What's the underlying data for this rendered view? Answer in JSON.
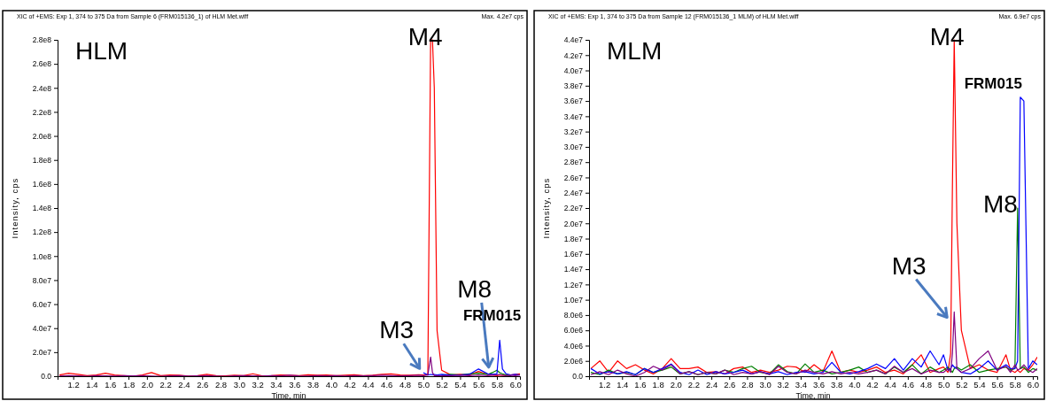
{
  "chart_data": [
    {
      "type": "line",
      "title": "HLM",
      "subtitle": "XIC of +EMS: Exp 1, 374 to 375 Da from Sample 6 (FRM015136_1) of HLM Met.wiff",
      "xlabel": "Time, min",
      "ylabel": "Intensity, cps",
      "x": [
        1.05,
        1.15,
        1.25,
        1.35,
        1.45,
        1.55,
        1.65,
        1.75,
        1.85,
        1.95,
        2.05,
        2.15,
        2.25,
        2.35,
        2.45,
        2.55,
        2.65,
        2.75,
        2.85,
        2.95,
        3.05,
        3.15,
        3.25,
        3.35,
        3.45,
        3.55,
        3.65,
        3.75,
        3.85,
        3.95,
        4.05,
        4.15,
        4.25,
        4.35,
        4.45,
        4.55,
        4.65,
        4.75,
        4.85,
        4.95,
        5.0,
        5.05,
        5.08,
        5.1,
        5.12,
        5.15,
        5.2,
        5.3,
        5.4,
        5.5,
        5.6,
        5.7,
        5.75,
        5.8,
        5.83,
        5.86,
        5.9,
        5.95,
        6.0,
        6.05
      ],
      "xlim": [
        1.03,
        6.05
      ],
      "xticks": [
        1.2,
        1.4,
        1.6,
        1.8,
        {
          "value": 2,
          "label": "2.0"
        },
        2.2,
        2.4,
        2.6,
        2.8,
        {
          "value": 3,
          "label": "3.0"
        },
        3.2,
        3.4,
        3.6,
        3.8,
        {
          "value": 4,
          "label": "4.0"
        },
        4.2,
        4.4,
        4.6,
        4.8,
        {
          "value": 5,
          "label": "5.0"
        },
        5.2,
        5.4,
        5.6,
        5.8,
        {
          "value": 6,
          "label": "6.0"
        }
      ],
      "ylim": [
        0,
        280000000.0
      ],
      "yticks": [
        {
          "value": 0,
          "label": "0.0"
        },
        {
          "value": 20000000.0,
          "label": "2.0e7"
        },
        {
          "value": 40000000.0,
          "label": "4.0e7"
        },
        {
          "value": 60000000.0,
          "label": "6.0e7"
        },
        {
          "value": 80000000.0,
          "label": "8.0e7"
        },
        {
          "value": 100000000.0,
          "label": "1.0e8"
        },
        {
          "value": 120000000.0,
          "label": "1.2e8"
        },
        {
          "value": 140000000.0,
          "label": "1.4e8"
        },
        {
          "value": 160000000.0,
          "label": "1.6e8"
        },
        {
          "value": 180000000.0,
          "label": "1.8e8"
        },
        {
          "value": 200000000.0,
          "label": "2.0e8"
        },
        {
          "value": 220000000.0,
          "label": "2.2e8"
        },
        {
          "value": 240000000.0,
          "label": "2.4e8"
        },
        {
          "value": 260000000.0,
          "label": "2.6e8"
        },
        {
          "value": 280000000.0,
          "label": "2.8e8"
        }
      ],
      "series": [
        {
          "color": "#ff0000",
          "values": [
            1000000.0,
            2500000.0,
            1500000.0,
            500000.0,
            1000000.0,
            2500000.0,
            1000000.0,
            500000.0,
            0,
            1000000.0,
            3000000.0,
            500000.0,
            1000000.0,
            800000.0,
            200000.0,
            500000.0,
            1500000.0,
            500000.0,
            300000.0,
            800000.0,
            500000.0,
            2000000.0,
            300000.0,
            500000.0,
            1000000.0,
            800000.0,
            500000.0,
            1200000.0,
            800000.0,
            1000000.0,
            500000.0,
            800000.0,
            1200000.0,
            500000.0,
            800000.0,
            1500000.0,
            2000000.0,
            1000000.0,
            800000.0,
            1200000.0,
            1000000.0,
            1500000.0,
            280000000.0,
            280000000.0,
            240000000.0,
            38000000.0,
            5000000.0,
            1000000.0,
            1500000.0,
            1000000.0,
            4000000.0,
            1500000.0,
            1000000.0,
            500000.0,
            1000000.0,
            800000.0,
            500000.0,
            1000000.0,
            1500000.0,
            2000000.0
          ]
        },
        {
          "color": "#008000",
          "values": [
            null,
            null,
            null,
            null,
            null,
            null,
            null,
            null,
            null,
            null,
            null,
            null,
            null,
            null,
            null,
            null,
            null,
            null,
            null,
            null,
            null,
            null,
            null,
            null,
            null,
            null,
            null,
            null,
            null,
            null,
            null,
            null,
            null,
            null,
            null,
            null,
            null,
            null,
            null,
            null,
            null,
            null,
            null,
            null,
            null,
            null,
            800000.0,
            1500000.0,
            1000000.0,
            2000000.0,
            2500000.0,
            1500000.0,
            3000000.0,
            5000000.0,
            3000000.0,
            2000000.0,
            1000000.0,
            500000.0,
            null,
            null
          ]
        },
        {
          "color": "#0000ff",
          "values": [
            null,
            null,
            null,
            null,
            null,
            null,
            null,
            null,
            null,
            null,
            null,
            null,
            null,
            null,
            null,
            null,
            null,
            null,
            null,
            null,
            null,
            null,
            null,
            null,
            null,
            null,
            null,
            null,
            null,
            null,
            null,
            null,
            null,
            null,
            null,
            null,
            null,
            null,
            null,
            null,
            3000000.0,
            1000000.0,
            1500000.0,
            1200000.0,
            1500000.0,
            1000000.0,
            1500000.0,
            800000.0,
            1000000.0,
            1500000.0,
            6000000.0,
            2000000.0,
            1500000.0,
            2000000.0,
            30000000.0,
            6000000.0,
            2000000.0,
            1000000.0,
            1500000.0,
            1000000.0
          ]
        },
        {
          "color": "#800080",
          "values": [
            200000.0,
            500000.0,
            300000.0,
            0,
            500000.0,
            300000.0,
            200000.0,
            500000.0,
            300000.0,
            500000.0,
            200000.0,
            0,
            300000.0,
            500000.0,
            200000.0,
            300000.0,
            500000.0,
            200000.0,
            0,
            300000.0,
            500000.0,
            300000.0,
            200000.0,
            500000.0,
            300000.0,
            800000.0,
            300000.0,
            200000.0,
            500000.0,
            300000.0,
            500000.0,
            200000.0,
            500000.0,
            300000.0,
            500000.0,
            800000.0,
            500000.0,
            300000.0,
            500000.0,
            800000.0,
            500000.0,
            1000000.0,
            16000000.0,
            3000000.0,
            500000.0,
            500000.0,
            300000.0,
            500000.0,
            800000.0,
            500000.0,
            1000000.0,
            500000.0,
            800000.0,
            1000000.0,
            1500000.0,
            800000.0,
            500000.0,
            800000.0,
            500000.0,
            1000000.0
          ]
        }
      ],
      "annotations": [
        {
          "text": "M4",
          "x": 5.1,
          "y": 280000000.0
        },
        {
          "text": "M3",
          "x": 4.98,
          "y": 2000000.0
        },
        {
          "text": "M8",
          "x": 5.73,
          "y": 3000000.0
        },
        {
          "text": "FRM015",
          "x": 5.83,
          "y": 30000000.0
        },
        "Max. 4.2e7 cps"
      ]
    },
    {
      "type": "line",
      "title": "MLM",
      "subtitle": "XIC of +EMS: Exp 1, 374 to 375 Da from Sample 12 (FRM015136_1 MLM) of HLM Met.wiff",
      "xlabel": "Time, min",
      "ylabel": "Intensity, cps",
      "x": [
        1.05,
        1.15,
        1.25,
        1.35,
        1.45,
        1.55,
        1.65,
        1.75,
        1.85,
        1.95,
        2.05,
        2.15,
        2.25,
        2.35,
        2.45,
        2.55,
        2.65,
        2.75,
        2.85,
        2.95,
        3.05,
        3.15,
        3.25,
        3.35,
        3.45,
        3.55,
        3.65,
        3.75,
        3.85,
        3.95,
        4.05,
        4.15,
        4.25,
        4.35,
        4.45,
        4.55,
        4.65,
        4.75,
        4.85,
        4.95,
        5.0,
        5.05,
        5.08,
        5.1,
        5.12,
        5.15,
        5.2,
        5.3,
        5.4,
        5.5,
        5.6,
        5.7,
        5.75,
        5.8,
        5.83,
        5.86,
        5.9,
        5.95,
        6.0,
        6.05
      ],
      "xlim": [
        1.03,
        6.05
      ],
      "xticks": [
        1.2,
        1.4,
        1.6,
        1.8,
        {
          "value": 2,
          "label": "2.0"
        },
        2.2,
        2.4,
        2.6,
        2.8,
        {
          "value": 3,
          "label": "3.0"
        },
        3.2,
        3.4,
        3.6,
        3.8,
        {
          "value": 4,
          "label": "4.0"
        },
        4.2,
        4.4,
        4.6,
        4.8,
        {
          "value": 5,
          "label": "5.0"
        },
        5.2,
        5.4,
        5.6,
        5.8,
        {
          "value": 6,
          "label": "6.0"
        }
      ],
      "ylim": [
        0,
        44000000.0
      ],
      "yticks": [
        {
          "value": 0,
          "label": "0.0"
        },
        {
          "value": 2000000.0,
          "label": "2.0e6"
        },
        {
          "value": 4000000.0,
          "label": "4.0e6"
        },
        {
          "value": 6000000.0,
          "label": "6.0e6"
        },
        {
          "value": 8000000.0,
          "label": "8.0e6"
        },
        {
          "value": 10000000.0,
          "label": "1.0e7"
        },
        {
          "value": 12000000.0,
          "label": "1.2e7"
        },
        {
          "value": 14000000.0,
          "label": "1.4e7"
        },
        {
          "value": 16000000.0,
          "label": "1.6e7"
        },
        {
          "value": 18000000.0,
          "label": "1.8e7"
        },
        {
          "value": 20000000.0,
          "label": "2.0e7"
        },
        {
          "value": 22000000.0,
          "label": "2.2e7"
        },
        {
          "value": 24000000.0,
          "label": "2.4e7"
        },
        {
          "value": 26000000.0,
          "label": "2.6e7"
        },
        {
          "value": 28000000.0,
          "label": "2.8e7"
        },
        {
          "value": 30000000.0,
          "label": "3.0e7"
        },
        {
          "value": 32000000.0,
          "label": "3.2e7"
        },
        {
          "value": 34000000.0,
          "label": "3.4e7"
        },
        {
          "value": 36000000.0,
          "label": "3.6e7"
        },
        {
          "value": 38000000.0,
          "label": "3.8e7"
        },
        {
          "value": 40000000.0,
          "label": "4.0e7"
        },
        {
          "value": 42000000.0,
          "label": "4.2e7"
        },
        {
          "value": 44000000.0,
          "label": "4.4e7"
        }
      ],
      "series": [
        {
          "color": "#ff0000",
          "values": [
            1000000.0,
            2000000.0,
            500000.0,
            2000000.0,
            1000000.0,
            1500000.0,
            800000.0,
            300000.0,
            1000000.0,
            2300000.0,
            1000000.0,
            1000000.0,
            1200000.0,
            500000.0,
            600000.0,
            300000.0,
            1000000.0,
            1200000.0,
            500000.0,
            800000.0,
            500000.0,
            800000.0,
            1300000.0,
            1200000.0,
            500000.0,
            1500000.0,
            600000.0,
            3300000.0,
            500000.0,
            800000.0,
            500000.0,
            800000.0,
            1200000.0,
            500000.0,
            800000.0,
            300000.0,
            1500000.0,
            2800000.0,
            500000.0,
            1000000.0,
            1200000.0,
            500000.0,
            3000000.0,
            25000000.0,
            44000000.0,
            20000000.0,
            6000000.0,
            1000000.0,
            1500000.0,
            800000.0,
            500000.0,
            2800000.0,
            800000.0,
            500000.0,
            800000.0,
            500000.0,
            1000000.0,
            800000.0,
            1500000.0,
            2500000.0
          ]
        },
        {
          "color": "#008000",
          "values": [
            500000.0,
            200000.0,
            800000.0,
            300000.0,
            500000.0,
            200000.0,
            1000000.0,
            500000.0,
            800000.0,
            1200000.0,
            300000.0,
            600000.0,
            200000.0,
            500000.0,
            300000.0,
            800000.0,
            500000.0,
            1000000.0,
            1300000.0,
            500000.0,
            300000.0,
            1500000.0,
            600000.0,
            300000.0,
            1600000.0,
            500000.0,
            800000.0,
            300000.0,
            500000.0,
            800000.0,
            1200000.0,
            500000.0,
            800000.0,
            300000.0,
            1200000.0,
            500000.0,
            1500000.0,
            300000.0,
            1200000.0,
            500000.0,
            800000.0,
            1200000.0,
            800000.0,
            500000.0,
            1000000.0,
            1200000.0,
            800000.0,
            1500000.0,
            500000.0,
            800000.0,
            1000000.0,
            1200000.0,
            800000.0,
            1000000.0,
            22000000.0,
            1000000.0,
            1200000.0,
            500000.0,
            1000000.0,
            800000.0
          ]
        },
        {
          "color": "#0000ff",
          "values": [
            1000000.0,
            300000.0,
            600000.0,
            300000.0,
            600000.0,
            200000.0,
            1000000.0,
            500000.0,
            1000000.0,
            1600000.0,
            500000.0,
            200000.0,
            800000.0,
            200000.0,
            600000.0,
            300000.0,
            500000.0,
            800000.0,
            300000.0,
            600000.0,
            300000.0,
            600000.0,
            200000.0,
            500000.0,
            600000.0,
            300000.0,
            500000.0,
            1800000.0,
            500000.0,
            300000.0,
            600000.0,
            1000000.0,
            1600000.0,
            1000000.0,
            2300000.0,
            800000.0,
            2300000.0,
            1200000.0,
            3300000.0,
            1500000.0,
            2800000.0,
            800000.0,
            1000000.0,
            1500000.0,
            1200000.0,
            1000000.0,
            500000.0,
            300000.0,
            1000000.0,
            2000000.0,
            800000.0,
            1500000.0,
            1000000.0,
            1000000.0,
            2000000.0,
            36500000.0,
            36000000.0,
            1000000.0,
            2000000.0,
            1500000.0
          ]
        },
        {
          "color": "#800080",
          "values": [
            200000.0,
            600000.0,
            200000.0,
            800000.0,
            300000.0,
            0,
            500000.0,
            1300000.0,
            800000.0,
            1500000.0,
            300000.0,
            600000.0,
            200000.0,
            500000.0,
            300000.0,
            800000.0,
            200000.0,
            500000.0,
            300000.0,
            600000.0,
            200000.0,
            1300000.0,
            500000.0,
            300000.0,
            800000.0,
            500000.0,
            300000.0,
            600000.0,
            300000.0,
            500000.0,
            300000.0,
            500000.0,
            800000.0,
            300000.0,
            1300000.0,
            500000.0,
            1000000.0,
            300000.0,
            800000.0,
            500000.0,
            500000.0,
            1000000.0,
            500000.0,
            3000000.0,
            8400000.0,
            1000000.0,
            500000.0,
            1000000.0,
            2300000.0,
            3300000.0,
            800000.0,
            1300000.0,
            500000.0,
            1500000.0,
            800000.0,
            1000000.0,
            1500000.0,
            800000.0,
            500000.0,
            1000000.0
          ]
        }
      ],
      "annotations": [
        {
          "text": "M4",
          "x": 5.12,
          "y": 44000000.0
        },
        {
          "text": "FRM015",
          "x": 5.88,
          "y": 36500000.0
        },
        {
          "text": "M8",
          "x": 5.83,
          "y": 22000000.0
        },
        {
          "text": "M3",
          "x": 5.06,
          "y": 7000000.0
        },
        "Max. 6.9e7 cps"
      ]
    }
  ]
}
